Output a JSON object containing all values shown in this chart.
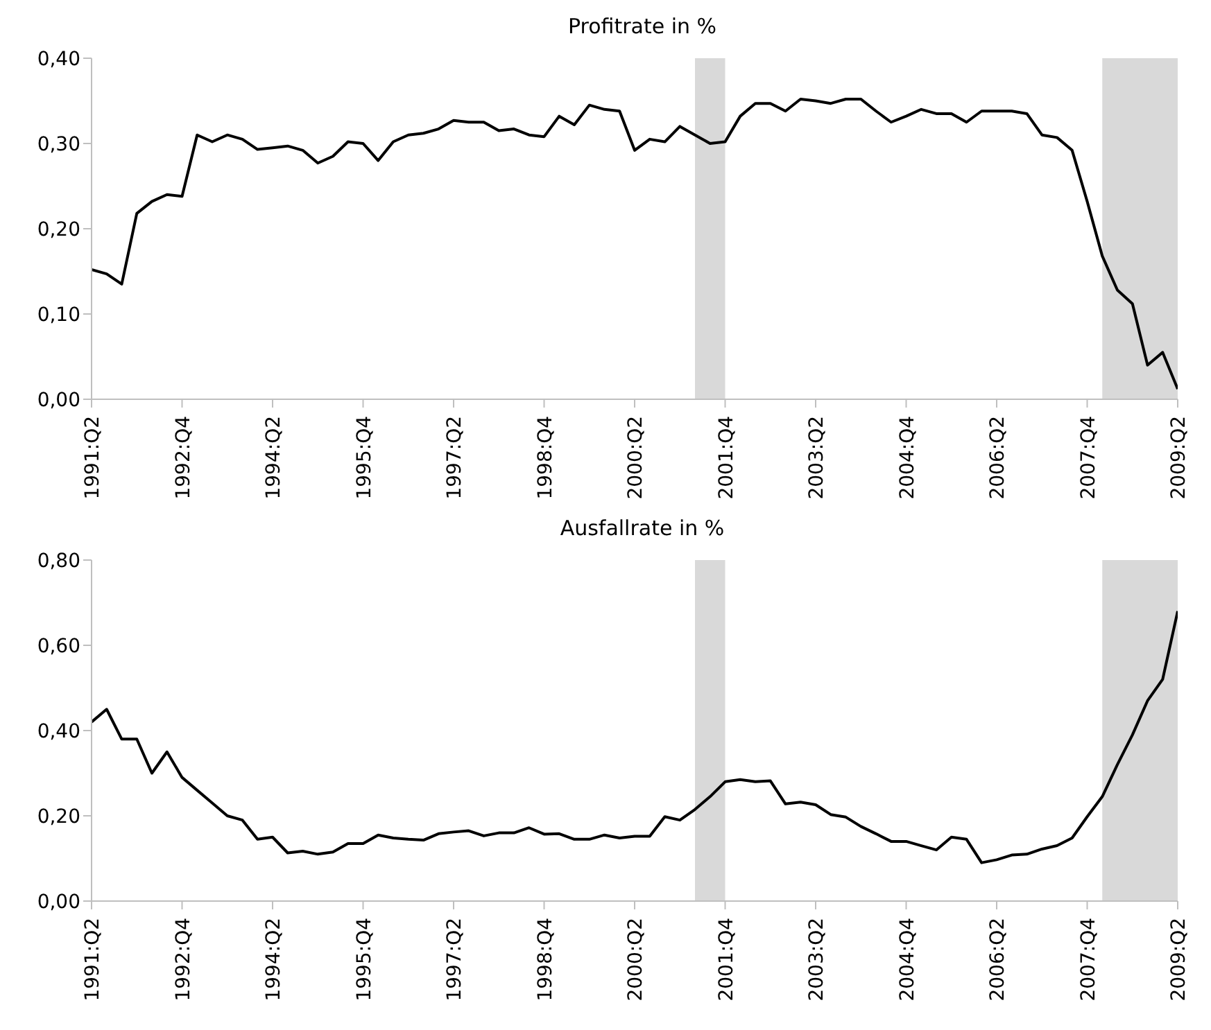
{
  "chart_data": [
    {
      "type": "line",
      "title": "Profitrate in %",
      "x": [
        "1991-04",
        "1991-07",
        "1991-10",
        "1992-01",
        "1992-04",
        "1992-07",
        "1992-10",
        "1993-01",
        "1993-04",
        "1993-07",
        "1993-10",
        "1994-01",
        "1994-04",
        "1994-07",
        "1994-10",
        "1995-01",
        "1995-04",
        "1995-07",
        "1995-10",
        "1996-01",
        "1996-04",
        "1996-07",
        "1996-10",
        "1997-01",
        "1997-04",
        "1997-07",
        "1997-10",
        "1998-01",
        "1998-04",
        "1998-07",
        "1998-10",
        "1999-01",
        "1999-04",
        "1999-07",
        "1999-10",
        "2000-01",
        "2000-04",
        "2000-07",
        "2000-10",
        "2001-01",
        "2001-04",
        "2001-07",
        "2001-10",
        "2002-01",
        "2002-04",
        "2002-07",
        "2002-10",
        "2003-01",
        "2003-04",
        "2003-07",
        "2003-10",
        "2004-01",
        "2004-04",
        "2004-07",
        "2004-10",
        "2005-01",
        "2005-04",
        "2005-07",
        "2005-10",
        "2006-01",
        "2006-04",
        "2006-07",
        "2006-10",
        "2007-01",
        "2007-04",
        "2007-07",
        "2007-10",
        "2008-01",
        "2008-04",
        "2008-07",
        "2008-10",
        "2009-01",
        "2009-04"
      ],
      "series": [
        {
          "color": "#000000",
          "values": [
            0.152,
            0.147,
            0.135,
            0.218,
            0.232,
            0.24,
            0.238,
            0.31,
            0.302,
            0.31,
            0.305,
            0.293,
            0.295,
            0.297,
            0.292,
            0.277,
            0.285,
            0.302,
            0.3,
            0.28,
            0.302,
            0.31,
            0.312,
            0.317,
            0.327,
            0.325,
            0.325,
            0.315,
            0.317,
            0.31,
            0.308,
            0.332,
            0.322,
            0.345,
            0.34,
            0.338,
            0.292,
            0.305,
            0.302,
            0.32,
            0.31,
            0.3,
            0.302,
            0.332,
            0.347,
            0.347,
            0.338,
            0.352,
            0.35,
            0.347,
            0.352,
            0.352,
            0.338,
            0.325,
            0.332,
            0.34,
            0.335,
            0.335,
            0.325,
            0.338,
            0.338,
            0.338,
            0.335,
            0.31,
            0.307,
            0.292,
            0.232,
            0.168,
            0.128,
            0.112,
            0.04,
            0.055,
            0.012
          ]
        }
      ],
      "xlim": [
        "1991-04",
        "2009-04"
      ],
      "xticks": [
        {
          "value": "1991-04",
          "label": "1991:Q2"
        },
        {
          "value": "1992-10",
          "label": "1992:Q4"
        },
        {
          "value": "1994-04",
          "label": "1994:Q2"
        },
        {
          "value": "1995-10",
          "label": "1995:Q4"
        },
        {
          "value": "1997-04",
          "label": "1997:Q2"
        },
        {
          "value": "1998-10",
          "label": "1998:Q4"
        },
        {
          "value": "2000-04",
          "label": "2000:Q2"
        },
        {
          "value": "2001-10",
          "label": "2001:Q4"
        },
        {
          "value": "2003-04",
          "label": "2003:Q2"
        },
        {
          "value": "2004-10",
          "label": "2004:Q4"
        },
        {
          "value": "2006-04",
          "label": "2006:Q2"
        },
        {
          "value": "2007-10",
          "label": "2007:Q4"
        },
        {
          "value": "2009-04",
          "label": "2009:Q2"
        }
      ],
      "ylim": [
        0,
        0.4
      ],
      "yticks": [
        {
          "value": 0,
          "label": "0,00"
        },
        {
          "value": 0.1,
          "label": "0,10"
        },
        {
          "value": 0.2,
          "label": "0,20"
        },
        {
          "value": 0.3,
          "label": "0,30"
        },
        {
          "value": 0.4,
          "label": "0,40"
        }
      ],
      "bands": [
        {
          "axis": "x",
          "from": "2001-04",
          "to": "2001-10",
          "color": "#d9d9d9"
        },
        {
          "axis": "x",
          "from": "2008-01",
          "to": "2009-04",
          "color": "#d9d9d9"
        }
      ],
      "grid": false,
      "legend": false,
      "marker": "none",
      "line_style": "solid"
    },
    {
      "type": "line",
      "title": "Ausfallrate in %",
      "x": [
        "1991-04",
        "1991-07",
        "1991-10",
        "1992-01",
        "1992-04",
        "1992-07",
        "1992-10",
        "1993-01",
        "1993-04",
        "1993-07",
        "1993-10",
        "1994-01",
        "1994-04",
        "1994-07",
        "1994-10",
        "1995-01",
        "1995-04",
        "1995-07",
        "1995-10",
        "1996-01",
        "1996-04",
        "1996-07",
        "1996-10",
        "1997-01",
        "1997-04",
        "1997-07",
        "1997-10",
        "1998-01",
        "1998-04",
        "1998-07",
        "1998-10",
        "1999-01",
        "1999-04",
        "1999-07",
        "1999-10",
        "2000-01",
        "2000-04",
        "2000-07",
        "2000-10",
        "2001-01",
        "2001-04",
        "2001-07",
        "2001-10",
        "2002-01",
        "2002-04",
        "2002-07",
        "2002-10",
        "2003-01",
        "2003-04",
        "2003-07",
        "2003-10",
        "2004-01",
        "2004-04",
        "2004-07",
        "2004-10",
        "2005-01",
        "2005-04",
        "2005-07",
        "2005-10",
        "2006-01",
        "2006-04",
        "2006-07",
        "2006-10",
        "2007-01",
        "2007-04",
        "2007-07",
        "2007-10",
        "2008-01",
        "2008-04",
        "2008-07",
        "2008-10",
        "2009-01",
        "2009-04"
      ],
      "series": [
        {
          "color": "#000000",
          "values": [
            0.42,
            0.45,
            0.38,
            0.38,
            0.3,
            0.35,
            0.29,
            0.26,
            0.23,
            0.2,
            0.19,
            0.145,
            0.15,
            0.113,
            0.117,
            0.11,
            0.115,
            0.135,
            0.135,
            0.155,
            0.148,
            0.145,
            0.143,
            0.158,
            0.162,
            0.165,
            0.153,
            0.16,
            0.16,
            0.172,
            0.157,
            0.158,
            0.145,
            0.145,
            0.155,
            0.148,
            0.152,
            0.152,
            0.198,
            0.19,
            0.215,
            0.245,
            0.28,
            0.285,
            0.28,
            0.282,
            0.228,
            0.232,
            0.226,
            0.203,
            0.197,
            0.175,
            0.158,
            0.14,
            0.14,
            0.13,
            0.12,
            0.15,
            0.145,
            0.09,
            0.097,
            0.108,
            0.11,
            0.122,
            0.13,
            0.148,
            0.198,
            0.245,
            0.32,
            0.39,
            0.47,
            0.52,
            0.68
          ]
        }
      ],
      "xlim": [
        "1991-04",
        "2009-04"
      ],
      "xticks": [
        {
          "value": "1991-04",
          "label": "1991:Q2"
        },
        {
          "value": "1992-10",
          "label": "1992:Q4"
        },
        {
          "value": "1994-04",
          "label": "1994:Q2"
        },
        {
          "value": "1995-10",
          "label": "1995:Q4"
        },
        {
          "value": "1997-04",
          "label": "1997:Q2"
        },
        {
          "value": "1998-10",
          "label": "1998:Q4"
        },
        {
          "value": "2000-04",
          "label": "2000:Q2"
        },
        {
          "value": "2001-10",
          "label": "2001:Q4"
        },
        {
          "value": "2003-04",
          "label": "2003:Q2"
        },
        {
          "value": "2004-10",
          "label": "2004:Q4"
        },
        {
          "value": "2006-04",
          "label": "2006:Q2"
        },
        {
          "value": "2007-10",
          "label": "2007:Q4"
        },
        {
          "value": "2009-04",
          "label": "2009:Q2"
        }
      ],
      "ylim": [
        0,
        0.8
      ],
      "yticks": [
        {
          "value": 0,
          "label": "0,00"
        },
        {
          "value": 0.2,
          "label": "0,20"
        },
        {
          "value": 0.4,
          "label": "0,40"
        },
        {
          "value": 0.6,
          "label": "0,60"
        },
        {
          "value": 0.8,
          "label": "0,80"
        }
      ],
      "bands": [
        {
          "axis": "x",
          "from": "2001-04",
          "to": "2001-10",
          "color": "#d9d9d9"
        },
        {
          "axis": "x",
          "from": "2008-01",
          "to": "2009-04",
          "color": "#d9d9d9"
        }
      ],
      "grid": false,
      "legend": false,
      "marker": "none",
      "line_style": "solid"
    }
  ]
}
